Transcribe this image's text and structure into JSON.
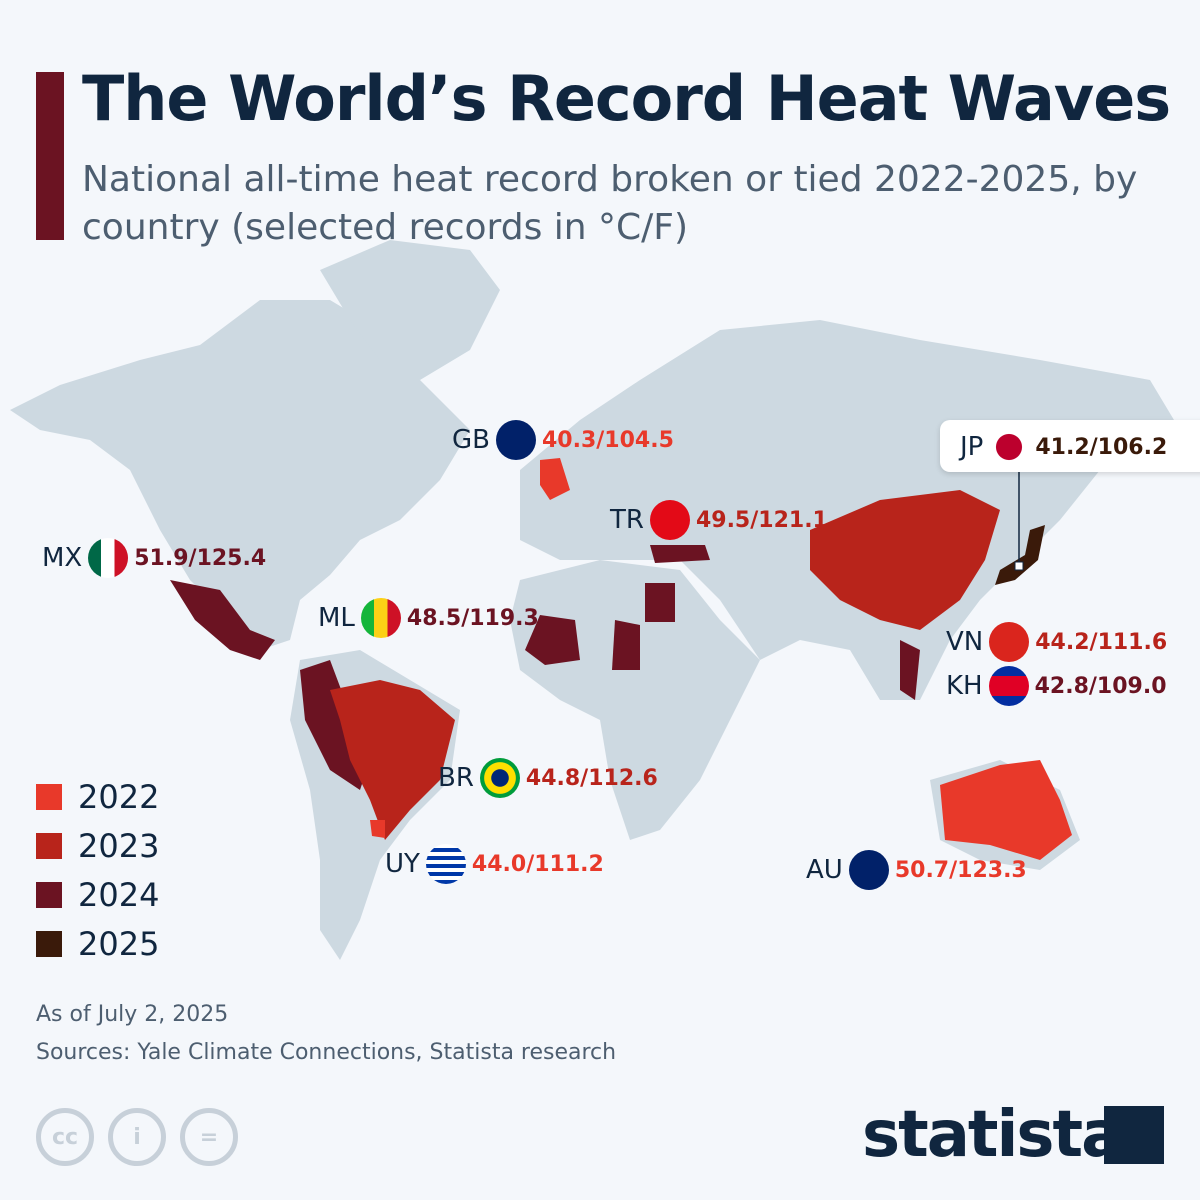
{
  "header": {
    "title": "The World’s Record Heat Waves",
    "subtitle": "National all-time heat record broken or tied 2022-2025, by country (selected records in °C/F)"
  },
  "colors": {
    "2022": "#e8392a",
    "2023": "#b8241b",
    "2024": "#6b1322",
    "2025": "#3a1a0a",
    "land": "#cdd9e1"
  },
  "labels": [
    {
      "code": "GB",
      "value": "40.3/104.5",
      "year": "2022"
    },
    {
      "code": "TR",
      "value": "49.5/121.1",
      "year": "2023"
    },
    {
      "code": "MX",
      "value": "51.9/125.4",
      "year": "2024"
    },
    {
      "code": "ML",
      "value": "48.5/119.3",
      "year": "2024"
    },
    {
      "code": "JP",
      "value": "41.2/106.2",
      "year": "2025"
    },
    {
      "code": "VN",
      "value": "44.2/111.6",
      "year": "2023"
    },
    {
      "code": "KH",
      "value": "42.8/109.0",
      "year": "2024"
    },
    {
      "code": "BR",
      "value": "44.8/112.6",
      "year": "2023"
    },
    {
      "code": "UY",
      "value": "44.0/111.2",
      "year": "2022"
    },
    {
      "code": "AU",
      "value": "50.7/123.3",
      "year": "2022"
    }
  ],
  "legend": [
    {
      "label": "2022",
      "color": "#e8392a"
    },
    {
      "label": "2023",
      "color": "#b8241b"
    },
    {
      "label": "2024",
      "color": "#6b1322"
    },
    {
      "label": "2025",
      "color": "#3a1a0a"
    }
  ],
  "footer": {
    "date": "As of July 2, 2025",
    "sources": "Sources: Yale Climate Connections, Statista research",
    "brand": "statista",
    "license_icons": [
      "cc",
      "i",
      "="
    ]
  }
}
